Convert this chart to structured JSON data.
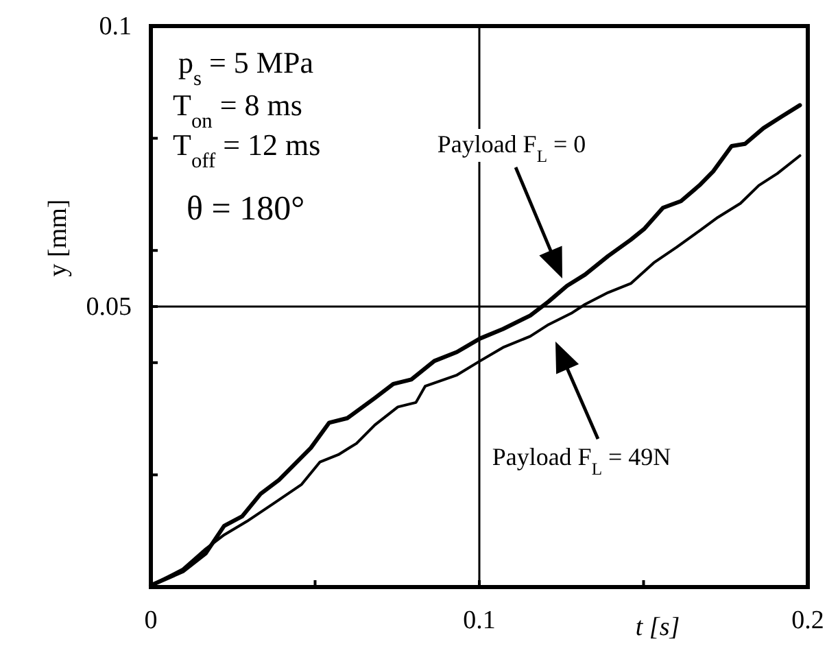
{
  "chart_data": {
    "type": "line",
    "xlabel": "t  [s]",
    "ylabel": "y [mm]",
    "xlim": [
      0,
      0.2
    ],
    "ylim": [
      0,
      0.1
    ],
    "xticks": [
      0,
      {
        "value": 0.05,
        "label": null
      },
      {
        "value": 0.1,
        "label": "0.1"
      },
      {
        "value": 0.15,
        "label": null
      },
      {
        "value": 0.2,
        "label": "0.2"
      }
    ],
    "yticks": [
      {
        "value": 0.02,
        "label": null
      },
      {
        "value": 0.04,
        "label": null
      },
      0.05,
      {
        "value": 0.06,
        "label": null
      },
      {
        "value": 0.08,
        "label": null
      },
      0.1
    ],
    "ref_lines": [
      {
        "axis": "x",
        "value": 0.1,
        "color": "#000000"
      },
      {
        "axis": "y",
        "value": 0.05,
        "color": "#000000"
      }
    ],
    "series": [
      {
        "color": "#000000",
        "x": [
          0,
          0.0097,
          0.0167,
          0.0223,
          0.0278,
          0.0334,
          0.039,
          0.0431,
          0.0487,
          0.0543,
          0.0598,
          0.0682,
          0.0738,
          0.0793,
          0.0863,
          0.0932,
          0.1002,
          0.1072,
          0.1155,
          0.1211,
          0.1267,
          0.1322,
          0.1392,
          0.1461,
          0.1503,
          0.1559,
          0.1614,
          0.167,
          0.1712,
          0.1768,
          0.1809,
          0.1865,
          0.1921,
          0.1976
        ],
        "values": [
          0.0003,
          0.0028,
          0.006,
          0.0109,
          0.0126,
          0.0166,
          0.0191,
          0.0215,
          0.0248,
          0.0293,
          0.0301,
          0.0337,
          0.0362,
          0.037,
          0.0403,
          0.0419,
          0.0443,
          0.046,
          0.0484,
          0.0509,
          0.0537,
          0.0557,
          0.059,
          0.0619,
          0.0639,
          0.0676,
          0.0688,
          0.0716,
          0.0741,
          0.0786,
          0.079,
          0.0818,
          0.0839,
          0.0859
        ]
      },
      {
        "color": "#000000",
        "x": [
          0,
          0.0097,
          0.0167,
          0.0223,
          0.0292,
          0.0376,
          0.0459,
          0.0515,
          0.0571,
          0.0626,
          0.0682,
          0.0752,
          0.0807,
          0.0835,
          0.0932,
          0.1002,
          0.1072,
          0.1155,
          0.1211,
          0.128,
          0.1322,
          0.1392,
          0.1461,
          0.1531,
          0.1601,
          0.167,
          0.1726,
          0.1795,
          0.1851,
          0.1907,
          0.1976
        ],
        "values": [
          0.0003,
          0.0032,
          0.0068,
          0.0093,
          0.0117,
          0.015,
          0.0183,
          0.0223,
          0.0236,
          0.0256,
          0.0289,
          0.0321,
          0.0329,
          0.0358,
          0.0378,
          0.0403,
          0.0427,
          0.0447,
          0.0468,
          0.0488,
          0.0504,
          0.0525,
          0.0541,
          0.0578,
          0.0606,
          0.0635,
          0.0659,
          0.0684,
          0.0716,
          0.0737,
          0.0769
        ]
      }
    ],
    "annotations": [
      "p$_{s}$ = 5 MPa",
      "T$_{on}$ = 8 ms",
      "T$_{off}$ = 12 ms",
      "θ = 180°",
      "Payload F$_{L}$ = 0",
      "Payload F$_{L}$ = 49N"
    ]
  }
}
